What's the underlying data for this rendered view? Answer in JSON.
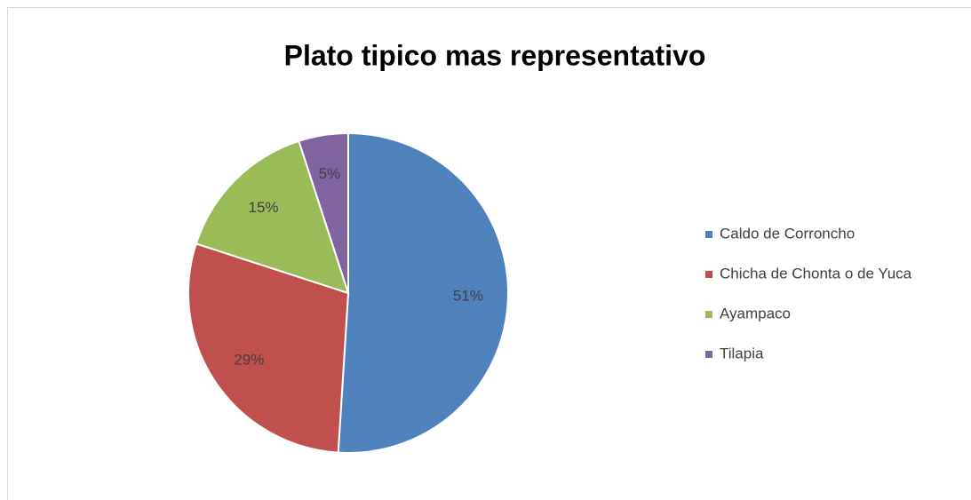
{
  "chart_data": {
    "type": "pie",
    "title": "Plato tipico mas representativo",
    "categories": [
      "Caldo de Corroncho",
      "Chicha de Chonta o de Yuca",
      "Ayampaco",
      "Tilapia"
    ],
    "values": [
      51,
      29,
      15,
      5
    ],
    "value_labels": [
      "51%",
      "29%",
      "15%",
      "5%"
    ],
    "colors": [
      "#4f81bd",
      "#c0504d",
      "#9bbb59",
      "#8064a2"
    ],
    "legend": "right"
  }
}
